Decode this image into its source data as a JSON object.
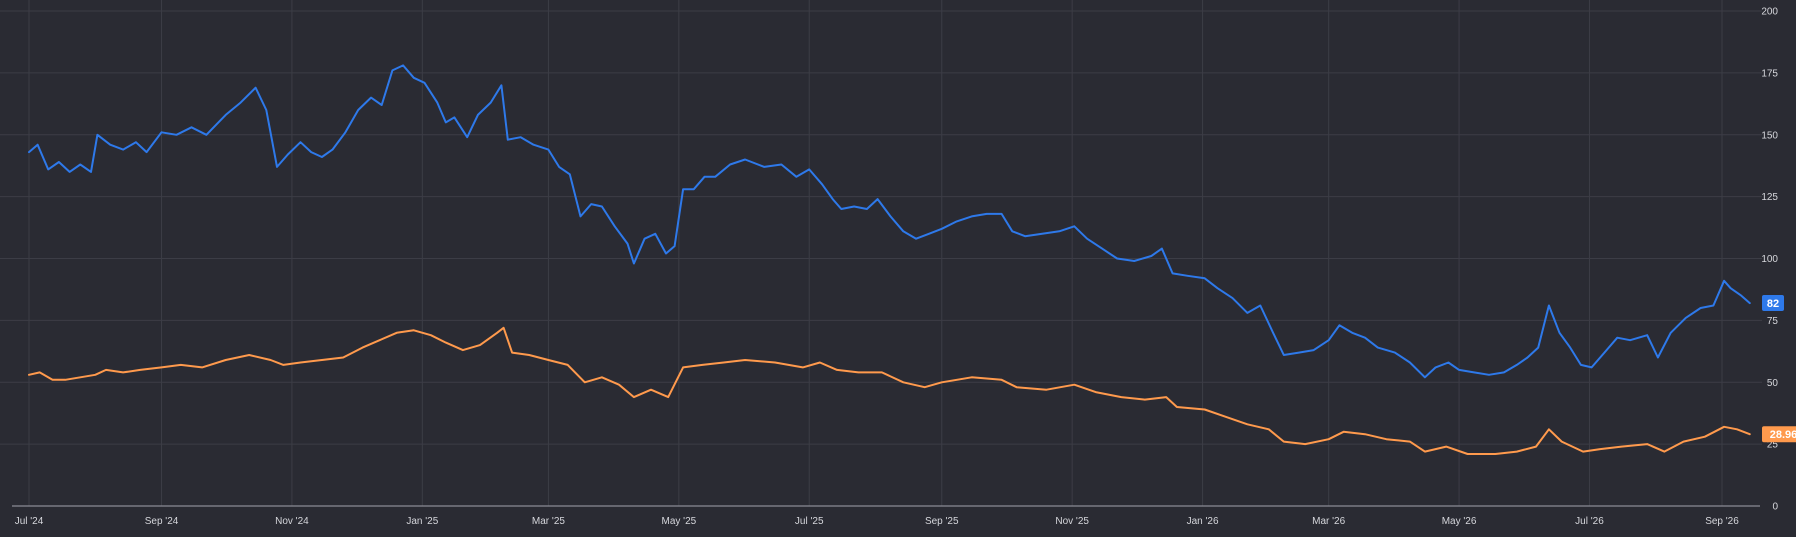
{
  "chart_data": {
    "type": "line",
    "title": "",
    "xlabel": "",
    "ylabel": "",
    "ylim": [
      0,
      200
    ],
    "grid": true,
    "y_ticks": [
      0,
      25,
      50,
      75,
      100,
      125,
      150,
      175,
      200
    ],
    "y_tick_labels": [
      "0",
      "25",
      "50",
      "75",
      "100",
      "125",
      "150",
      "175",
      "200"
    ],
    "x_ticks": [
      "2024-07",
      "2024-09",
      "2024-11",
      "2025-01",
      "2025-03",
      "2025-05",
      "2025-07",
      "2025-09",
      "2025-11",
      "2026-01",
      "2026-03",
      "2026-05",
      "2026-07",
      "2026-09"
    ],
    "x_tick_labels": [
      "Jul '24",
      "Sep '24",
      "Nov '24",
      "Jan '25",
      "Mar '25",
      "May '25",
      "Jul '25",
      "Sep '25",
      "Nov '25",
      "Jan '26",
      "Mar '26",
      "May '26",
      "Jul '26",
      "Sep '26"
    ],
    "x_range": [
      "2024-07-01",
      "2026-10-01"
    ],
    "series": [
      {
        "color": "#2e79ea",
        "last_value_label": "82",
        "points": [
          [
            "2024-07-01",
            143
          ],
          [
            "2024-07-05",
            146
          ],
          [
            "2024-07-10",
            136
          ],
          [
            "2024-07-15",
            139
          ],
          [
            "2024-07-20",
            135
          ],
          [
            "2024-07-25",
            138
          ],
          [
            "2024-07-30",
            135
          ],
          [
            "2024-08-02",
            150
          ],
          [
            "2024-08-08",
            146
          ],
          [
            "2024-08-14",
            144
          ],
          [
            "2024-08-20",
            147
          ],
          [
            "2024-08-25",
            143
          ],
          [
            "2024-09-01",
            151
          ],
          [
            "2024-09-08",
            150
          ],
          [
            "2024-09-15",
            153
          ],
          [
            "2024-09-22",
            150
          ],
          [
            "2024-10-01",
            158
          ],
          [
            "2024-10-08",
            163
          ],
          [
            "2024-10-15",
            169
          ],
          [
            "2024-10-20",
            160
          ],
          [
            "2024-10-25",
            137
          ],
          [
            "2024-10-30",
            142
          ],
          [
            "2024-11-05",
            147
          ],
          [
            "2024-11-10",
            143
          ],
          [
            "2024-11-15",
            141
          ],
          [
            "2024-11-20",
            144
          ],
          [
            "2024-11-26",
            151
          ],
          [
            "2024-12-02",
            160
          ],
          [
            "2024-12-08",
            165
          ],
          [
            "2024-12-13",
            162
          ],
          [
            "2024-12-18",
            176
          ],
          [
            "2024-12-23",
            178
          ],
          [
            "2024-12-28",
            173
          ],
          [
            "2025-01-02",
            171
          ],
          [
            "2025-01-08",
            163
          ],
          [
            "2025-01-12",
            155
          ],
          [
            "2025-01-16",
            157
          ],
          [
            "2025-01-22",
            149
          ],
          [
            "2025-01-27",
            158
          ],
          [
            "2025-02-02",
            163
          ],
          [
            "2025-02-07",
            170
          ],
          [
            "2025-02-10",
            148
          ],
          [
            "2025-02-16",
            149
          ],
          [
            "2025-02-22",
            146
          ],
          [
            "2025-03-01",
            144
          ],
          [
            "2025-03-06",
            137
          ],
          [
            "2025-03-11",
            134
          ],
          [
            "2025-03-16",
            117
          ],
          [
            "2025-03-21",
            122
          ],
          [
            "2025-03-26",
            121
          ],
          [
            "2025-04-01",
            113
          ],
          [
            "2025-04-07",
            106
          ],
          [
            "2025-04-10",
            98
          ],
          [
            "2025-04-15",
            108
          ],
          [
            "2025-04-20",
            110
          ],
          [
            "2025-04-25",
            102
          ],
          [
            "2025-04-29",
            105
          ],
          [
            "2025-05-03",
            128
          ],
          [
            "2025-05-08",
            128
          ],
          [
            "2025-05-13",
            133
          ],
          [
            "2025-05-18",
            133
          ],
          [
            "2025-05-25",
            138
          ],
          [
            "2025-06-01",
            140
          ],
          [
            "2025-06-10",
            137
          ],
          [
            "2025-06-18",
            138
          ],
          [
            "2025-06-25",
            133
          ],
          [
            "2025-07-01",
            136
          ],
          [
            "2025-07-07",
            130
          ],
          [
            "2025-07-12",
            124
          ],
          [
            "2025-07-16",
            120
          ],
          [
            "2025-07-22",
            121
          ],
          [
            "2025-07-28",
            120
          ],
          [
            "2025-08-02",
            124
          ],
          [
            "2025-08-08",
            117
          ],
          [
            "2025-08-14",
            111
          ],
          [
            "2025-08-20",
            108
          ],
          [
            "2025-08-26",
            110
          ],
          [
            "2025-09-01",
            112
          ],
          [
            "2025-09-08",
            115
          ],
          [
            "2025-09-15",
            117
          ],
          [
            "2025-09-22",
            118
          ],
          [
            "2025-09-29",
            118
          ],
          [
            "2025-10-04",
            111
          ],
          [
            "2025-10-10",
            109
          ],
          [
            "2025-10-18",
            110
          ],
          [
            "2025-10-26",
            111
          ],
          [
            "2025-11-02",
            113
          ],
          [
            "2025-11-08",
            108
          ],
          [
            "2025-11-15",
            104
          ],
          [
            "2025-11-22",
            100
          ],
          [
            "2025-11-30",
            99
          ],
          [
            "2025-12-08",
            101
          ],
          [
            "2025-12-13",
            104
          ],
          [
            "2025-12-18",
            94
          ],
          [
            "2025-12-25",
            93
          ],
          [
            "2026-01-02",
            92
          ],
          [
            "2026-01-08",
            88
          ],
          [
            "2026-01-15",
            84
          ],
          [
            "2026-01-22",
            78
          ],
          [
            "2026-01-28",
            81
          ],
          [
            "2026-02-03",
            70
          ],
          [
            "2026-02-08",
            61
          ],
          [
            "2026-02-15",
            62
          ],
          [
            "2026-02-22",
            63
          ],
          [
            "2026-03-01",
            67
          ],
          [
            "2026-03-06",
            73
          ],
          [
            "2026-03-12",
            70
          ],
          [
            "2026-03-18",
            68
          ],
          [
            "2026-03-24",
            64
          ],
          [
            "2026-04-01",
            62
          ],
          [
            "2026-04-08",
            58
          ],
          [
            "2026-04-15",
            52
          ],
          [
            "2026-04-20",
            56
          ],
          [
            "2026-04-26",
            58
          ],
          [
            "2026-05-01",
            55
          ],
          [
            "2026-05-08",
            54
          ],
          [
            "2026-05-15",
            53
          ],
          [
            "2026-05-22",
            54
          ],
          [
            "2026-05-28",
            57
          ],
          [
            "2026-06-02",
            60
          ],
          [
            "2026-06-07",
            64
          ],
          [
            "2026-06-12",
            81
          ],
          [
            "2026-06-17",
            70
          ],
          [
            "2026-06-22",
            64
          ],
          [
            "2026-06-27",
            57
          ],
          [
            "2026-07-02",
            56
          ],
          [
            "2026-07-08",
            62
          ],
          [
            "2026-07-14",
            68
          ],
          [
            "2026-07-20",
            67
          ],
          [
            "2026-07-28",
            69
          ],
          [
            "2026-08-02",
            60
          ],
          [
            "2026-08-08",
            70
          ],
          [
            "2026-08-15",
            76
          ],
          [
            "2026-08-22",
            80
          ],
          [
            "2026-08-28",
            81
          ],
          [
            "2026-09-02",
            91
          ],
          [
            "2026-09-05",
            88
          ],
          [
            "2026-09-10",
            85
          ],
          [
            "2026-09-14",
            82
          ]
        ]
      },
      {
        "color": "#ff9a4d",
        "last_value_label": "28.96",
        "points": [
          [
            "2024-07-01",
            53
          ],
          [
            "2024-07-06",
            54
          ],
          [
            "2024-07-12",
            51
          ],
          [
            "2024-07-18",
            51
          ],
          [
            "2024-07-25",
            52
          ],
          [
            "2024-08-01",
            53
          ],
          [
            "2024-08-06",
            55
          ],
          [
            "2024-08-14",
            54
          ],
          [
            "2024-08-22",
            55
          ],
          [
            "2024-09-01",
            56
          ],
          [
            "2024-09-10",
            57
          ],
          [
            "2024-09-20",
            56
          ],
          [
            "2024-10-01",
            59
          ],
          [
            "2024-10-12",
            61
          ],
          [
            "2024-10-22",
            59
          ],
          [
            "2024-10-28",
            57
          ],
          [
            "2024-11-05",
            58
          ],
          [
            "2024-11-15",
            59
          ],
          [
            "2024-11-25",
            60
          ],
          [
            "2024-12-04",
            64
          ],
          [
            "2024-12-12",
            67
          ],
          [
            "2024-12-20",
            70
          ],
          [
            "2024-12-28",
            71
          ],
          [
            "2025-01-05",
            69
          ],
          [
            "2025-01-12",
            66
          ],
          [
            "2025-01-20",
            63
          ],
          [
            "2025-01-28",
            65
          ],
          [
            "2025-02-05",
            70
          ],
          [
            "2025-02-08",
            72
          ],
          [
            "2025-02-12",
            62
          ],
          [
            "2025-02-20",
            61
          ],
          [
            "2025-03-01",
            59
          ],
          [
            "2025-03-10",
            57
          ],
          [
            "2025-03-18",
            50
          ],
          [
            "2025-03-26",
            52
          ],
          [
            "2025-04-03",
            49
          ],
          [
            "2025-04-10",
            44
          ],
          [
            "2025-04-18",
            47
          ],
          [
            "2025-04-26",
            44
          ],
          [
            "2025-05-03",
            56
          ],
          [
            "2025-05-12",
            57
          ],
          [
            "2025-05-22",
            58
          ],
          [
            "2025-06-01",
            59
          ],
          [
            "2025-06-15",
            58
          ],
          [
            "2025-06-28",
            56
          ],
          [
            "2025-07-06",
            58
          ],
          [
            "2025-07-14",
            55
          ],
          [
            "2025-07-24",
            54
          ],
          [
            "2025-08-04",
            54
          ],
          [
            "2025-08-14",
            50
          ],
          [
            "2025-08-24",
            48
          ],
          [
            "2025-09-01",
            50
          ],
          [
            "2025-09-15",
            52
          ],
          [
            "2025-09-29",
            51
          ],
          [
            "2025-10-06",
            48
          ],
          [
            "2025-10-20",
            47
          ],
          [
            "2025-11-02",
            49
          ],
          [
            "2025-11-12",
            46
          ],
          [
            "2025-11-24",
            44
          ],
          [
            "2025-12-05",
            43
          ],
          [
            "2025-12-15",
            44
          ],
          [
            "2025-12-20",
            40
          ],
          [
            "2026-01-02",
            39
          ],
          [
            "2026-01-12",
            36
          ],
          [
            "2026-01-22",
            33
          ],
          [
            "2026-02-01",
            31
          ],
          [
            "2026-02-08",
            26
          ],
          [
            "2026-02-18",
            25
          ],
          [
            "2026-03-01",
            27
          ],
          [
            "2026-03-08",
            30
          ],
          [
            "2026-03-18",
            29
          ],
          [
            "2026-03-28",
            27
          ],
          [
            "2026-04-08",
            26
          ],
          [
            "2026-04-15",
            22
          ],
          [
            "2026-04-25",
            24
          ],
          [
            "2026-05-05",
            21
          ],
          [
            "2026-05-18",
            21
          ],
          [
            "2026-05-28",
            22
          ],
          [
            "2026-06-06",
            24
          ],
          [
            "2026-06-12",
            31
          ],
          [
            "2026-06-18",
            26
          ],
          [
            "2026-06-28",
            22
          ],
          [
            "2026-07-06",
            23
          ],
          [
            "2026-07-16",
            24
          ],
          [
            "2026-07-28",
            25
          ],
          [
            "2026-08-05",
            22
          ],
          [
            "2026-08-14",
            26
          ],
          [
            "2026-08-24",
            28
          ],
          [
            "2026-09-02",
            32
          ],
          [
            "2026-09-08",
            31
          ],
          [
            "2026-09-14",
            29
          ]
        ]
      }
    ]
  }
}
